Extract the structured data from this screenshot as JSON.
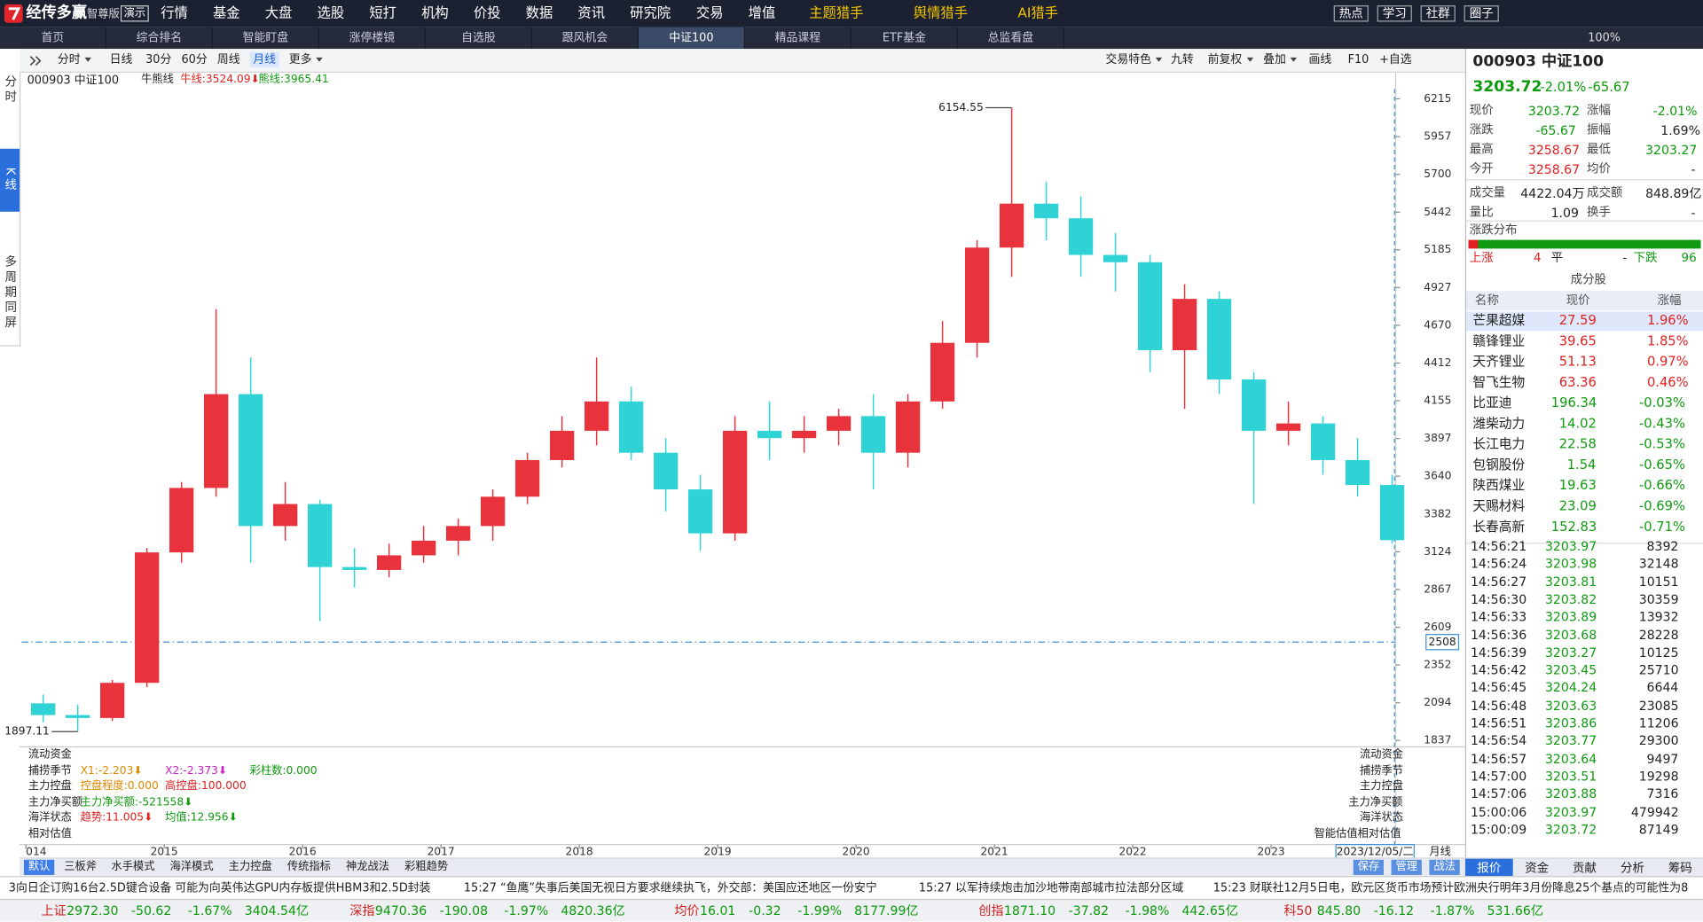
{
  "topbar": {
    "logo": "经传多赢",
    "edition": "智尊版",
    "demo": "演示",
    "menu": [
      "行情",
      "基金",
      "大盘",
      "选股",
      "短打",
      "机构",
      "价投",
      "数据",
      "资讯",
      "研究院",
      "交易",
      "增值"
    ],
    "special": [
      "主题猎手",
      "舆情猎手",
      "AI猎手"
    ],
    "buttons": [
      "热点",
      "学习",
      "社群",
      "圈子"
    ]
  },
  "tabs": {
    "items": [
      "首页",
      "综合排名",
      "智能盯盘",
      "涨停楼镜",
      "自选股",
      "跟风机会",
      "中证100",
      "精品课程",
      "ETF基金",
      "总监看盘"
    ],
    "active": 6,
    "zoom": "100%"
  },
  "sidebar": {
    "items": [
      "分时",
      "K线",
      "多周期同屏"
    ],
    "active": 1
  },
  "toolbar": {
    "left": [
      "分时",
      "日线",
      "30分",
      "60分",
      "周线",
      "月线",
      "更多"
    ],
    "left_active": 5,
    "right": [
      "交易特色",
      "九转",
      "前复权",
      "叠加",
      "画线",
      "F10",
      "+自选"
    ]
  },
  "chart_data": {
    "type": "candlestick",
    "title": "000903 中证100",
    "overlay": "牛熊线",
    "bull_label": "牛线:3524.09⬇",
    "bear_label": "熊线:3965.41",
    "x": [
      2014.125,
      2014.375,
      2014.625,
      2014.875,
      2015.125,
      2015.375,
      2015.625,
      2015.875,
      2016.125,
      2016.375,
      2016.625,
      2016.875,
      2017.125,
      2017.375,
      2017.625,
      2017.875,
      2018.125,
      2018.375,
      2018.625,
      2018.875,
      2019.125,
      2019.375,
      2019.625,
      2019.875,
      2020.125,
      2020.375,
      2020.625,
      2020.875,
      2021.125,
      2021.375,
      2021.625,
      2021.875,
      2022.125,
      2022.375,
      2022.625,
      2022.875,
      2023.125,
      2023.375,
      2023.625,
      2023.875
    ],
    "ohlc": [
      [
        2090,
        2150,
        1960,
        2010
      ],
      [
        2010,
        2080,
        1897.11,
        1990
      ],
      [
        1990,
        2250,
        1970,
        2230
      ],
      [
        2230,
        3150,
        2200,
        3120
      ],
      [
        3120,
        3600,
        3050,
        3560
      ],
      [
        3560,
        4780,
        3500,
        4200
      ],
      [
        4200,
        4450,
        3050,
        3300
      ],
      [
        3300,
        3600,
        3200,
        3450
      ],
      [
        3450,
        3480,
        2650,
        3020
      ],
      [
        3020,
        3150,
        2880,
        3000
      ],
      [
        3000,
        3180,
        2950,
        3100
      ],
      [
        3100,
        3300,
        3050,
        3200
      ],
      [
        3200,
        3350,
        3100,
        3300
      ],
      [
        3300,
        3550,
        3200,
        3500
      ],
      [
        3500,
        3800,
        3450,
        3750
      ],
      [
        3750,
        4050,
        3700,
        3950
      ],
      [
        3950,
        4450,
        3850,
        4150
      ],
      [
        4150,
        4250,
        3750,
        3800
      ],
      [
        3800,
        3900,
        3400,
        3550
      ],
      [
        3550,
        3650,
        3130,
        3250
      ],
      [
        3250,
        4050,
        3200,
        3950
      ],
      [
        3950,
        4150,
        3750,
        3900
      ],
      [
        3900,
        4050,
        3800,
        3950
      ],
      [
        3950,
        4100,
        3850,
        4050
      ],
      [
        4050,
        4200,
        3550,
        3800
      ],
      [
        3800,
        4200,
        3700,
        4150
      ],
      [
        4150,
        4700,
        4100,
        4550
      ],
      [
        4550,
        5250,
        4450,
        5200
      ],
      [
        5200,
        6154.55,
        5000,
        5500
      ],
      [
        5500,
        5650,
        5250,
        5400
      ],
      [
        5400,
        5550,
        5000,
        5150
      ],
      [
        5150,
        5300,
        4900,
        5100
      ],
      [
        5100,
        5150,
        4350,
        4500
      ],
      [
        4500,
        4950,
        4100,
        4850
      ],
      [
        4850,
        4900,
        4200,
        4300
      ],
      [
        4300,
        4350,
        3450,
        3950
      ],
      [
        3950,
        4150,
        3850,
        4000
      ],
      [
        4000,
        4050,
        3650,
        3750
      ],
      [
        3750,
        3900,
        3500,
        3580
      ],
      [
        3580,
        3650,
        3180,
        3203.72
      ]
    ],
    "xlim": [
      2013.97,
      2023.9
    ],
    "xticks": [
      {
        "value": 2014,
        "label": "014"
      },
      2015,
      2016,
      2017,
      2018,
      2019,
      2020,
      2021,
      2022,
      2023
    ],
    "ylim": [
      1793,
      6282
    ],
    "yticks": [
      6215,
      5957,
      5700,
      5442,
      5185,
      4927,
      4670,
      4412,
      4155,
      3897,
      3640,
      3382,
      3124,
      2867,
      2609,
      2352,
      2094,
      1837
    ],
    "hline": 2508,
    "grid": false,
    "up_color": "#e8323c",
    "down_color": "#2fd3d6",
    "cursor_label": "2023/12/05/二",
    "period": "月线"
  },
  "indicators": [
    {
      "name": "流动资金",
      "right": "流动资金",
      "items": []
    },
    {
      "name": "捕捞季节",
      "right": "捕捞季节",
      "items": [
        {
          "text": "X1:-2.203⬇",
          "color": "#e08a00"
        },
        {
          "text": "X2:-2.373⬇",
          "color": "#d020c8"
        },
        {
          "text": "彩柱数:0.000",
          "color": "#109a10"
        }
      ]
    },
    {
      "name": "主力控盘",
      "right": "主力控盘",
      "items": [
        {
          "text": "控盘程度:0.000",
          "color": "#e08a00"
        },
        {
          "text": "高控盘:100.000",
          "color": "#e02020"
        }
      ]
    },
    {
      "name": "主力净买额",
      "right": "主力净买额",
      "items": [
        {
          "text": "主力净买额:-521558⬇",
          "color": "#109a10"
        }
      ]
    },
    {
      "name": "海洋状态",
      "right": "海洋状态",
      "items": [
        {
          "text": "趋势:11.005⬇",
          "color": "#e02020"
        },
        {
          "text": "均值:12.956⬇",
          "color": "#109a10"
        }
      ]
    },
    {
      "name": "相对估值",
      "right": "智能估值相对估值",
      "items": []
    }
  ],
  "bottom_tabs": {
    "items": [
      "默认",
      "三板斧",
      "水手模式",
      "海洋模式",
      "主力控盘",
      "传统指标",
      "神龙战法",
      "彩粗趋势"
    ],
    "active": 0,
    "actions": [
      "保存",
      "管理",
      "战法"
    ]
  },
  "panel_tabs": {
    "items": [
      "报价",
      "资金",
      "贡献",
      "分析",
      "筹码"
    ],
    "active": 0
  },
  "quote": {
    "price": "3203.72",
    "pct": "-2.01%",
    "chg": "-65.67",
    "color": "#0a9a0a",
    "cells": [
      {
        "label": "现价",
        "value": "3203.72",
        "color": "#0a9a0a"
      },
      {
        "label": "涨幅",
        "value": "-2.01%",
        "color": "#0a9a0a"
      },
      {
        "label": "涨跌",
        "value": "-65.67",
        "color": "#0a9a0a"
      },
      {
        "label": "振幅",
        "value": "1.69%",
        "color": "#222222"
      },
      {
        "label": "最高",
        "value": "3258.67",
        "color": "#e02020"
      },
      {
        "label": "最低",
        "value": "3203.27",
        "color": "#0a9a0a"
      },
      {
        "label": "今开",
        "value": "3258.67",
        "color": "#e02020"
      },
      {
        "label": "均价",
        "value": "-",
        "color": "#222222"
      },
      {
        "label": "成交量",
        "value": "4422.04万",
        "color": "#222222"
      },
      {
        "label": "成交额",
        "value": "848.89亿",
        "color": "#222222"
      },
      {
        "label": "量比",
        "value": "1.09",
        "color": "#222222"
      },
      {
        "label": "换手",
        "value": "-",
        "color": "#222222"
      }
    ]
  },
  "dist": {
    "title": "涨跌分布",
    "up_label": "上涨",
    "up": 4,
    "flat_label": "平",
    "flat": "-",
    "down_label": "下跌",
    "down": 96
  },
  "components": {
    "title": "成分股",
    "headers": [
      "名称",
      "现价",
      "涨幅"
    ],
    "rows": [
      [
        "芒果超媒",
        "27.59",
        "1.96%"
      ],
      [
        "赣锋锂业",
        "39.65",
        "1.85%"
      ],
      [
        "天齐锂业",
        "51.13",
        "0.97%"
      ],
      [
        "智飞生物",
        "63.36",
        "0.46%"
      ],
      [
        "比亚迪",
        "196.34",
        "-0.03%"
      ],
      [
        "潍柴动力",
        "14.02",
        "-0.43%"
      ],
      [
        "长江电力",
        "22.58",
        "-0.53%"
      ],
      [
        "包钢股份",
        "1.54",
        "-0.65%"
      ],
      [
        "陕西煤业",
        "19.63",
        "-0.66%"
      ],
      [
        "天赐材料",
        "23.09",
        "-0.69%"
      ],
      [
        "长春高新",
        "152.83",
        "-0.71%"
      ]
    ]
  },
  "trades": [
    [
      "14:56:21",
      "3203.97",
      "8392"
    ],
    [
      "14:56:24",
      "3203.98",
      "32148"
    ],
    [
      "14:56:27",
      "3203.81",
      "10151"
    ],
    [
      "14:56:30",
      "3203.82",
      "30359"
    ],
    [
      "14:56:33",
      "3203.89",
      "13932"
    ],
    [
      "14:56:36",
      "3203.68",
      "28228"
    ],
    [
      "14:56:39",
      "3203.27",
      "10125"
    ],
    [
      "14:56:42",
      "3203.45",
      "25710"
    ],
    [
      "14:56:45",
      "3204.24",
      "6644"
    ],
    [
      "14:56:48",
      "3203.63",
      "23085"
    ],
    [
      "14:56:51",
      "3203.86",
      "11206"
    ],
    [
      "14:56:54",
      "3203.77",
      "29300"
    ],
    [
      "14:56:57",
      "3203.64",
      "9497"
    ],
    [
      "14:57:00",
      "3203.51",
      "19298"
    ],
    [
      "14:57:06",
      "3203.88",
      "7316"
    ],
    [
      "15:00:06",
      "3203.97",
      "479942"
    ],
    [
      "15:00:09",
      "3203.72",
      "87149"
    ]
  ],
  "news": [
    "3向日企订购16台2.5D键合设备 可能为向英伟达GPU内存板提供HBM3和2.5D封装",
    "15:27 “鱼鹰”失事后美国无视日方要求继续执飞，外交部：美国应还地区一份安宁",
    "15:27 以军持续炮击加沙地带南部城市拉法部分区域",
    "15:23 财联社12月5日电，欧元区货币市场预计欧洲央行明年3月份降息25个基点的可能性为8"
  ],
  "indices": [
    [
      "上证",
      "2972.30",
      "-50.62",
      "-1.67%",
      "3404.54亿"
    ],
    [
      "深指",
      "9470.36",
      "-190.08",
      "-1.97%",
      "4820.36亿"
    ],
    [
      "均价",
      "16.01",
      "-0.32",
      "-1.99%",
      "8177.99亿"
    ],
    [
      "创指",
      "1871.10",
      "-37.82",
      "-1.98%",
      "442.65亿"
    ],
    [
      "科50",
      "845.80",
      "-16.12",
      "-1.87%",
      "531.66亿"
    ]
  ]
}
